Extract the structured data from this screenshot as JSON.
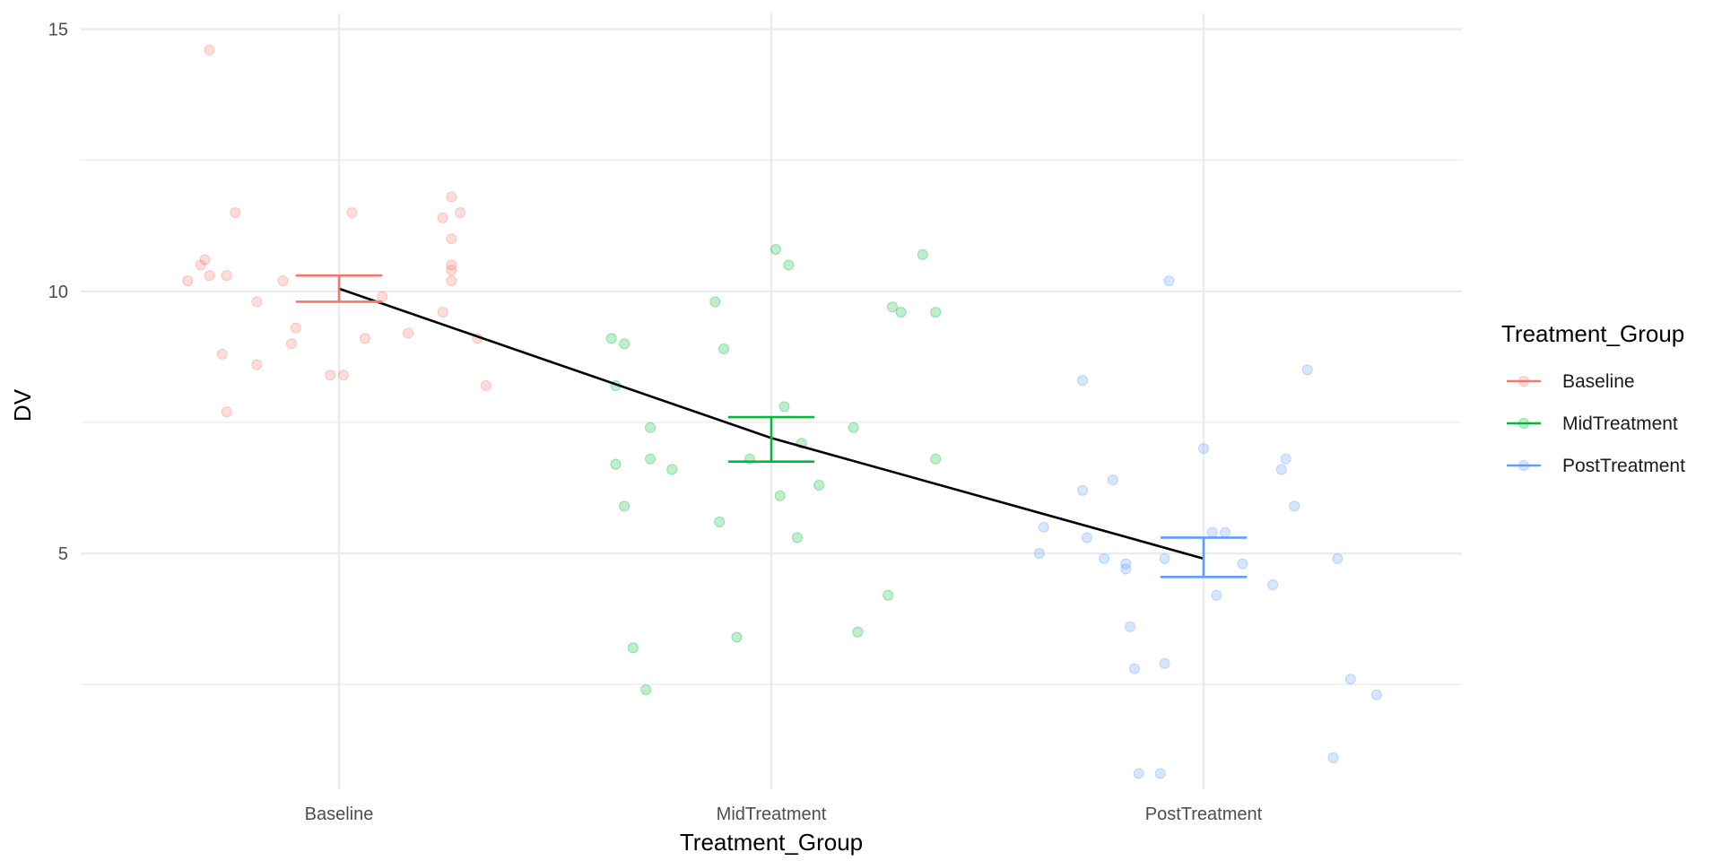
{
  "chart_data": {
    "type": "scatter",
    "title": "",
    "xlabel": "Treatment_Group",
    "ylabel": "DV",
    "categories": [
      "Baseline",
      "MidTreatment",
      "PostTreatment"
    ],
    "yticks": [
      5,
      10,
      15
    ],
    "ylim": [
      0.5,
      15.3
    ],
    "grid": true,
    "legend": {
      "title": "Treatment_Group",
      "position": "right",
      "entries": [
        "Baseline",
        "MidTreatment",
        "PostTreatment"
      ]
    },
    "colors": {
      "Baseline": "#F8766D",
      "MidTreatment": "#00BA38",
      "PostTreatment": "#619CFF",
      "mean_line": "#000000"
    },
    "series": [
      {
        "name": "Baseline",
        "category": "Baseline",
        "points": [
          [
            -0.3,
            14.6
          ],
          [
            -0.24,
            11.5
          ],
          [
            0.03,
            11.5
          ],
          [
            0.26,
            11.8
          ],
          [
            0.28,
            11.5
          ],
          [
            0.24,
            11.4
          ],
          [
            0.26,
            11.0
          ],
          [
            -0.31,
            10.6
          ],
          [
            -0.32,
            10.5
          ],
          [
            0.26,
            10.5
          ],
          [
            0.26,
            10.4
          ],
          [
            0.26,
            10.2
          ],
          [
            -0.3,
            10.3
          ],
          [
            -0.26,
            10.3
          ],
          [
            -0.13,
            10.2
          ],
          [
            -0.35,
            10.2
          ],
          [
            0.1,
            9.9
          ],
          [
            -0.19,
            9.8
          ],
          [
            0.24,
            9.6
          ],
          [
            -0.1,
            9.3
          ],
          [
            0.06,
            9.1
          ],
          [
            0.32,
            9.1
          ],
          [
            0.16,
            9.2
          ],
          [
            -0.11,
            9.0
          ],
          [
            -0.27,
            8.8
          ],
          [
            -0.19,
            8.6
          ],
          [
            -0.02,
            8.4
          ],
          [
            0.01,
            8.4
          ],
          [
            0.34,
            8.2
          ],
          [
            -0.26,
            7.7
          ]
        ],
        "mean": 10.05,
        "error": [
          9.8,
          10.3
        ]
      },
      {
        "name": "MidTreatment",
        "category": "MidTreatment",
        "points": [
          [
            0.01,
            10.8
          ],
          [
            0.04,
            10.5
          ],
          [
            0.35,
            10.7
          ],
          [
            -0.13,
            9.8
          ],
          [
            0.28,
            9.7
          ],
          [
            0.3,
            9.6
          ],
          [
            0.38,
            9.6
          ],
          [
            -0.37,
            9.1
          ],
          [
            -0.34,
            9.0
          ],
          [
            -0.11,
            8.9
          ],
          [
            -0.36,
            8.2
          ],
          [
            0.03,
            7.8
          ],
          [
            -0.28,
            7.4
          ],
          [
            0.19,
            7.4
          ],
          [
            0.07,
            7.1
          ],
          [
            -0.36,
            6.7
          ],
          [
            -0.28,
            6.8
          ],
          [
            -0.05,
            6.8
          ],
          [
            0.38,
            6.8
          ],
          [
            -0.23,
            6.6
          ],
          [
            0.11,
            6.3
          ],
          [
            0.02,
            6.1
          ],
          [
            -0.34,
            5.9
          ],
          [
            -0.12,
            5.6
          ],
          [
            0.06,
            5.3
          ],
          [
            0.27,
            4.2
          ],
          [
            -0.32,
            3.2
          ],
          [
            -0.08,
            3.4
          ],
          [
            0.2,
            3.5
          ],
          [
            -0.29,
            2.4
          ]
        ],
        "mean": 7.2,
        "error": [
          6.75,
          7.6
        ]
      },
      {
        "name": "PostTreatment",
        "category": "PostTreatment",
        "points": [
          [
            -0.08,
            10.2
          ],
          [
            0.24,
            8.5
          ],
          [
            -0.28,
            8.3
          ],
          [
            0.0,
            7.0
          ],
          [
            0.19,
            6.8
          ],
          [
            0.18,
            6.6
          ],
          [
            -0.21,
            6.4
          ],
          [
            -0.28,
            6.2
          ],
          [
            0.21,
            5.9
          ],
          [
            -0.37,
            5.5
          ],
          [
            0.02,
            5.4
          ],
          [
            0.05,
            5.4
          ],
          [
            -0.27,
            5.3
          ],
          [
            -0.38,
            5.0
          ],
          [
            -0.23,
            4.9
          ],
          [
            -0.18,
            4.8
          ],
          [
            -0.09,
            4.9
          ],
          [
            0.09,
            4.8
          ],
          [
            0.31,
            4.9
          ],
          [
            -0.18,
            4.7
          ],
          [
            0.16,
            4.4
          ],
          [
            0.03,
            4.2
          ],
          [
            -0.17,
            3.6
          ],
          [
            -0.16,
            2.8
          ],
          [
            -0.09,
            2.9
          ],
          [
            0.34,
            2.6
          ],
          [
            0.4,
            2.3
          ],
          [
            0.3,
            1.1
          ],
          [
            -0.15,
            0.8
          ],
          [
            -0.1,
            0.8
          ]
        ],
        "mean": 4.9,
        "error": [
          4.55,
          5.3
        ]
      }
    ]
  }
}
